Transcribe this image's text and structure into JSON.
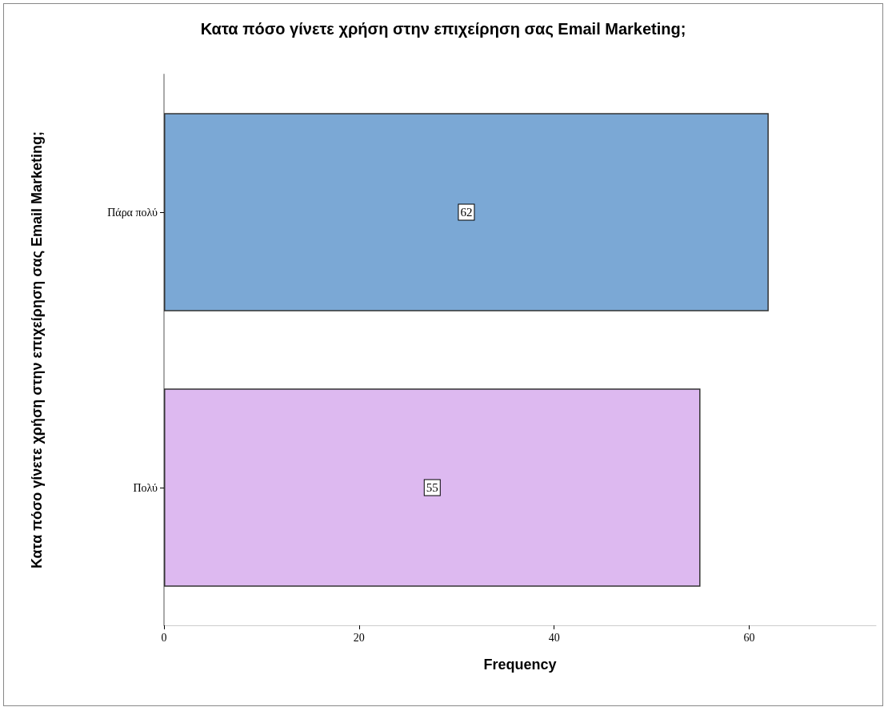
{
  "chart_data": {
    "type": "bar",
    "orientation": "horizontal",
    "title": "Κατα πόσο γίνετε χρήση στην επιχείρηση σας Email Marketing;",
    "ylabel": "Κατα πόσο γίνετε χρήση στην επιχείρηση σας Email Marketing;",
    "xlabel": "Frequency",
    "categories": [
      "Πάρα πολύ",
      "Πολύ"
    ],
    "values": [
      62,
      55
    ],
    "colors": [
      "#7ba8d5",
      "#ddb9f0"
    ],
    "xlim": [
      0,
      73
    ],
    "xticks": [
      0,
      20,
      40,
      60
    ],
    "grid": false,
    "data_labels": true
  }
}
